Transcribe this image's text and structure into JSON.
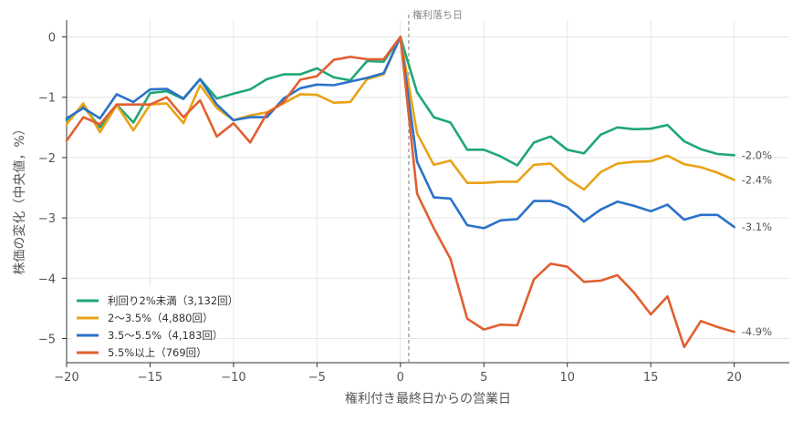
{
  "chart_data": {
    "type": "line",
    "xlabel": "権利付き最終日からの営業日",
    "ylabel": "株価の変化（中央値，%）",
    "xlim": [
      -20,
      23.3
    ],
    "ylim": [
      -5.4,
      0.28
    ],
    "xticks": [
      -20,
      -15,
      -10,
      -5,
      0,
      5,
      10,
      15,
      20
    ],
    "xtick_labels": [
      "−20",
      "−15",
      "−10",
      "−5",
      "0",
      "5",
      "10",
      "15",
      "20"
    ],
    "yticks": [
      0,
      -1,
      -2,
      -3,
      -4,
      -5
    ],
    "ytick_labels": [
      "0",
      "−1",
      "−2",
      "−3",
      "−4",
      "−5"
    ],
    "grid": true,
    "legend_position": "bottom-left",
    "annotation": {
      "x": 0.5,
      "label": "権利落ち日"
    },
    "x": [
      -20,
      -19,
      -18,
      -17,
      -16,
      -15,
      -14,
      -13,
      -12,
      -11,
      -10,
      -9,
      -8,
      -7,
      -6,
      -5,
      -4,
      -3,
      -2,
      -1,
      0,
      1,
      2,
      3,
      4,
      5,
      6,
      7,
      8,
      9,
      10,
      11,
      12,
      13,
      14,
      15,
      16,
      17,
      18,
      19,
      20
    ],
    "series": [
      {
        "name": "利回り2%未満（3,132回）",
        "color": "#1fa774",
        "end_label": "-2.0%",
        "values": [
          -1.38,
          -1.15,
          -1.5,
          -1.12,
          -1.42,
          -0.93,
          -0.9,
          -1.03,
          -0.7,
          -1.02,
          -0.94,
          -0.87,
          -0.7,
          -0.62,
          -0.62,
          -0.52,
          -0.67,
          -0.72,
          -0.4,
          -0.41,
          0,
          -0.92,
          -1.33,
          -1.42,
          -1.87,
          -1.87,
          -1.98,
          -2.13,
          -1.75,
          -1.65,
          -1.87,
          -1.93,
          -1.62,
          -1.5,
          -1.53,
          -1.52,
          -1.46,
          -1.73,
          -1.86,
          -1.94,
          -1.96
        ]
      },
      {
        "name": "2～3.5%（4,880回）",
        "color": "#e8a317",
        "end_label": "-2.4%",
        "values": [
          -1.45,
          -1.1,
          -1.58,
          -1.13,
          -1.55,
          -1.12,
          -1.1,
          -1.43,
          -0.8,
          -1.18,
          -1.38,
          -1.3,
          -1.25,
          -1.1,
          -0.95,
          -0.96,
          -1.09,
          -1.08,
          -0.7,
          -0.62,
          0,
          -1.6,
          -2.12,
          -2.05,
          -2.42,
          -2.42,
          -2.4,
          -2.4,
          -2.12,
          -2.1,
          -2.35,
          -2.53,
          -2.24,
          -2.1,
          -2.07,
          -2.06,
          -1.97,
          -2.11,
          -2.16,
          -2.25,
          -2.37
        ]
      },
      {
        "name": "3.5～5.5%（4,183回）",
        "color": "#2a72c8",
        "end_label": "-3.1%",
        "values": [
          -1.35,
          -1.18,
          -1.35,
          -0.95,
          -1.08,
          -0.87,
          -0.86,
          -1.02,
          -0.7,
          -1.12,
          -1.38,
          -1.33,
          -1.33,
          -1.02,
          -0.85,
          -0.79,
          -0.8,
          -0.74,
          -0.68,
          -0.6,
          0,
          -2.07,
          -2.66,
          -2.68,
          -3.12,
          -3.17,
          -3.04,
          -3.02,
          -2.72,
          -2.72,
          -2.82,
          -3.06,
          -2.86,
          -2.73,
          -2.8,
          -2.89,
          -2.78,
          -3.03,
          -2.95,
          -2.95,
          -3.15
        ]
      },
      {
        "name": "5.5%以上（769回）",
        "color": "#e06030",
        "end_label": "-4.9%",
        "values": [
          -1.72,
          -1.33,
          -1.45,
          -1.12,
          -1.12,
          -1.12,
          -1.0,
          -1.33,
          -1.05,
          -1.65,
          -1.43,
          -1.75,
          -1.27,
          -1.08,
          -0.71,
          -0.65,
          -0.38,
          -0.33,
          -0.37,
          -0.37,
          0,
          -2.6,
          -3.17,
          -3.68,
          -4.67,
          -4.85,
          -4.77,
          -4.78,
          -4.02,
          -3.76,
          -3.81,
          -4.06,
          -4.04,
          -3.95,
          -4.24,
          -4.6,
          -4.3,
          -5.14,
          -4.71,
          -4.81,
          -4.89
        ]
      }
    ]
  }
}
